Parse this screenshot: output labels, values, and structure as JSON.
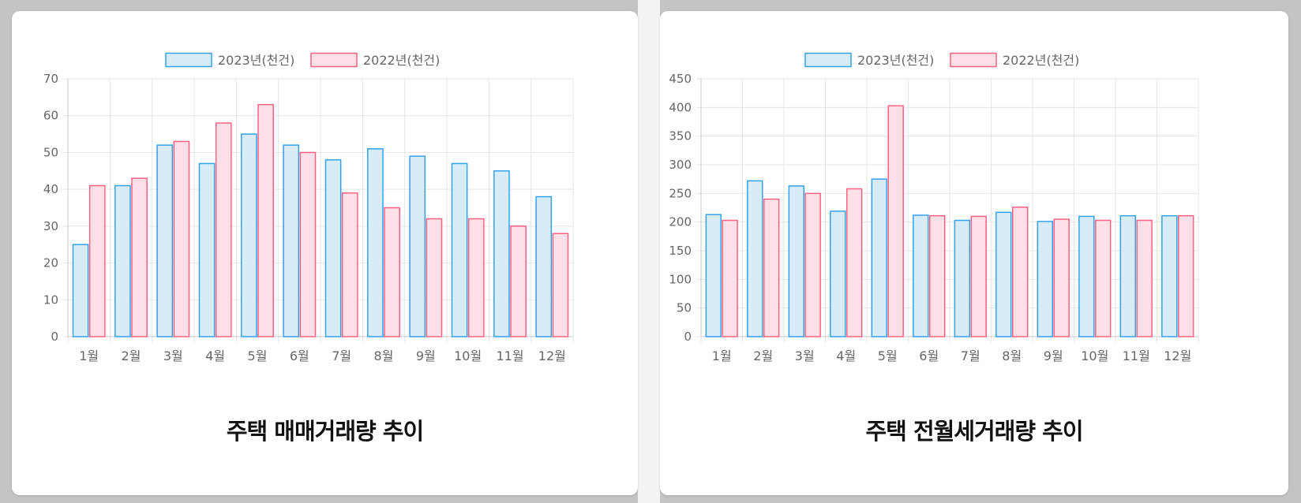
{
  "colors": {
    "series_2023_border": "#36a2eb",
    "series_2023_fill": "#d7ebf8",
    "series_2022_border": "#ff6384",
    "series_2022_fill": "#ffe0e6",
    "grid": "#e5e5e5",
    "axis_text": "#666666",
    "legend_text": "#666666"
  },
  "cards": [
    {
      "title": "주택 매매거래량 추이"
    },
    {
      "title": "주택 전월세거래량 추이"
    }
  ],
  "chart_data": [
    {
      "type": "bar",
      "title": "주택 매매거래량 추이",
      "legend_position": "top",
      "grid": true,
      "categories": [
        "1월",
        "2월",
        "3월",
        "4월",
        "5월",
        "6월",
        "7월",
        "8월",
        "9월",
        "10월",
        "11월",
        "12월"
      ],
      "series": [
        {
          "name": "2023년(천건)",
          "values": [
            25,
            41,
            52,
            47,
            55,
            52,
            48,
            51,
            49,
            47,
            45,
            38
          ]
        },
        {
          "name": "2022년(천건)",
          "values": [
            41,
            43,
            53,
            58,
            63,
            50,
            39,
            35,
            32,
            32,
            30,
            28
          ]
        }
      ],
      "ylim": [
        0,
        70
      ],
      "yticks": [
        0,
        10,
        20,
        30,
        40,
        50,
        60,
        70
      ]
    },
    {
      "type": "bar",
      "title": "주택 전월세거래량 추이",
      "legend_position": "top",
      "grid": true,
      "categories": [
        "1월",
        "2월",
        "3월",
        "4월",
        "5월",
        "6월",
        "7월",
        "8월",
        "9월",
        "10월",
        "11월",
        "12월"
      ],
      "series": [
        {
          "name": "2023년(천건)",
          "values": [
            213,
            272,
            263,
            219,
            275,
            212,
            203,
            217,
            201,
            210,
            211,
            211
          ]
        },
        {
          "name": "2022년(천건)",
          "values": [
            203,
            240,
            250,
            258,
            403,
            211,
            210,
            226,
            205,
            203,
            203,
            211
          ]
        }
      ],
      "ylim": [
        0,
        450
      ],
      "yticks": [
        0,
        50,
        100,
        150,
        200,
        250,
        300,
        350,
        400,
        450
      ]
    }
  ]
}
